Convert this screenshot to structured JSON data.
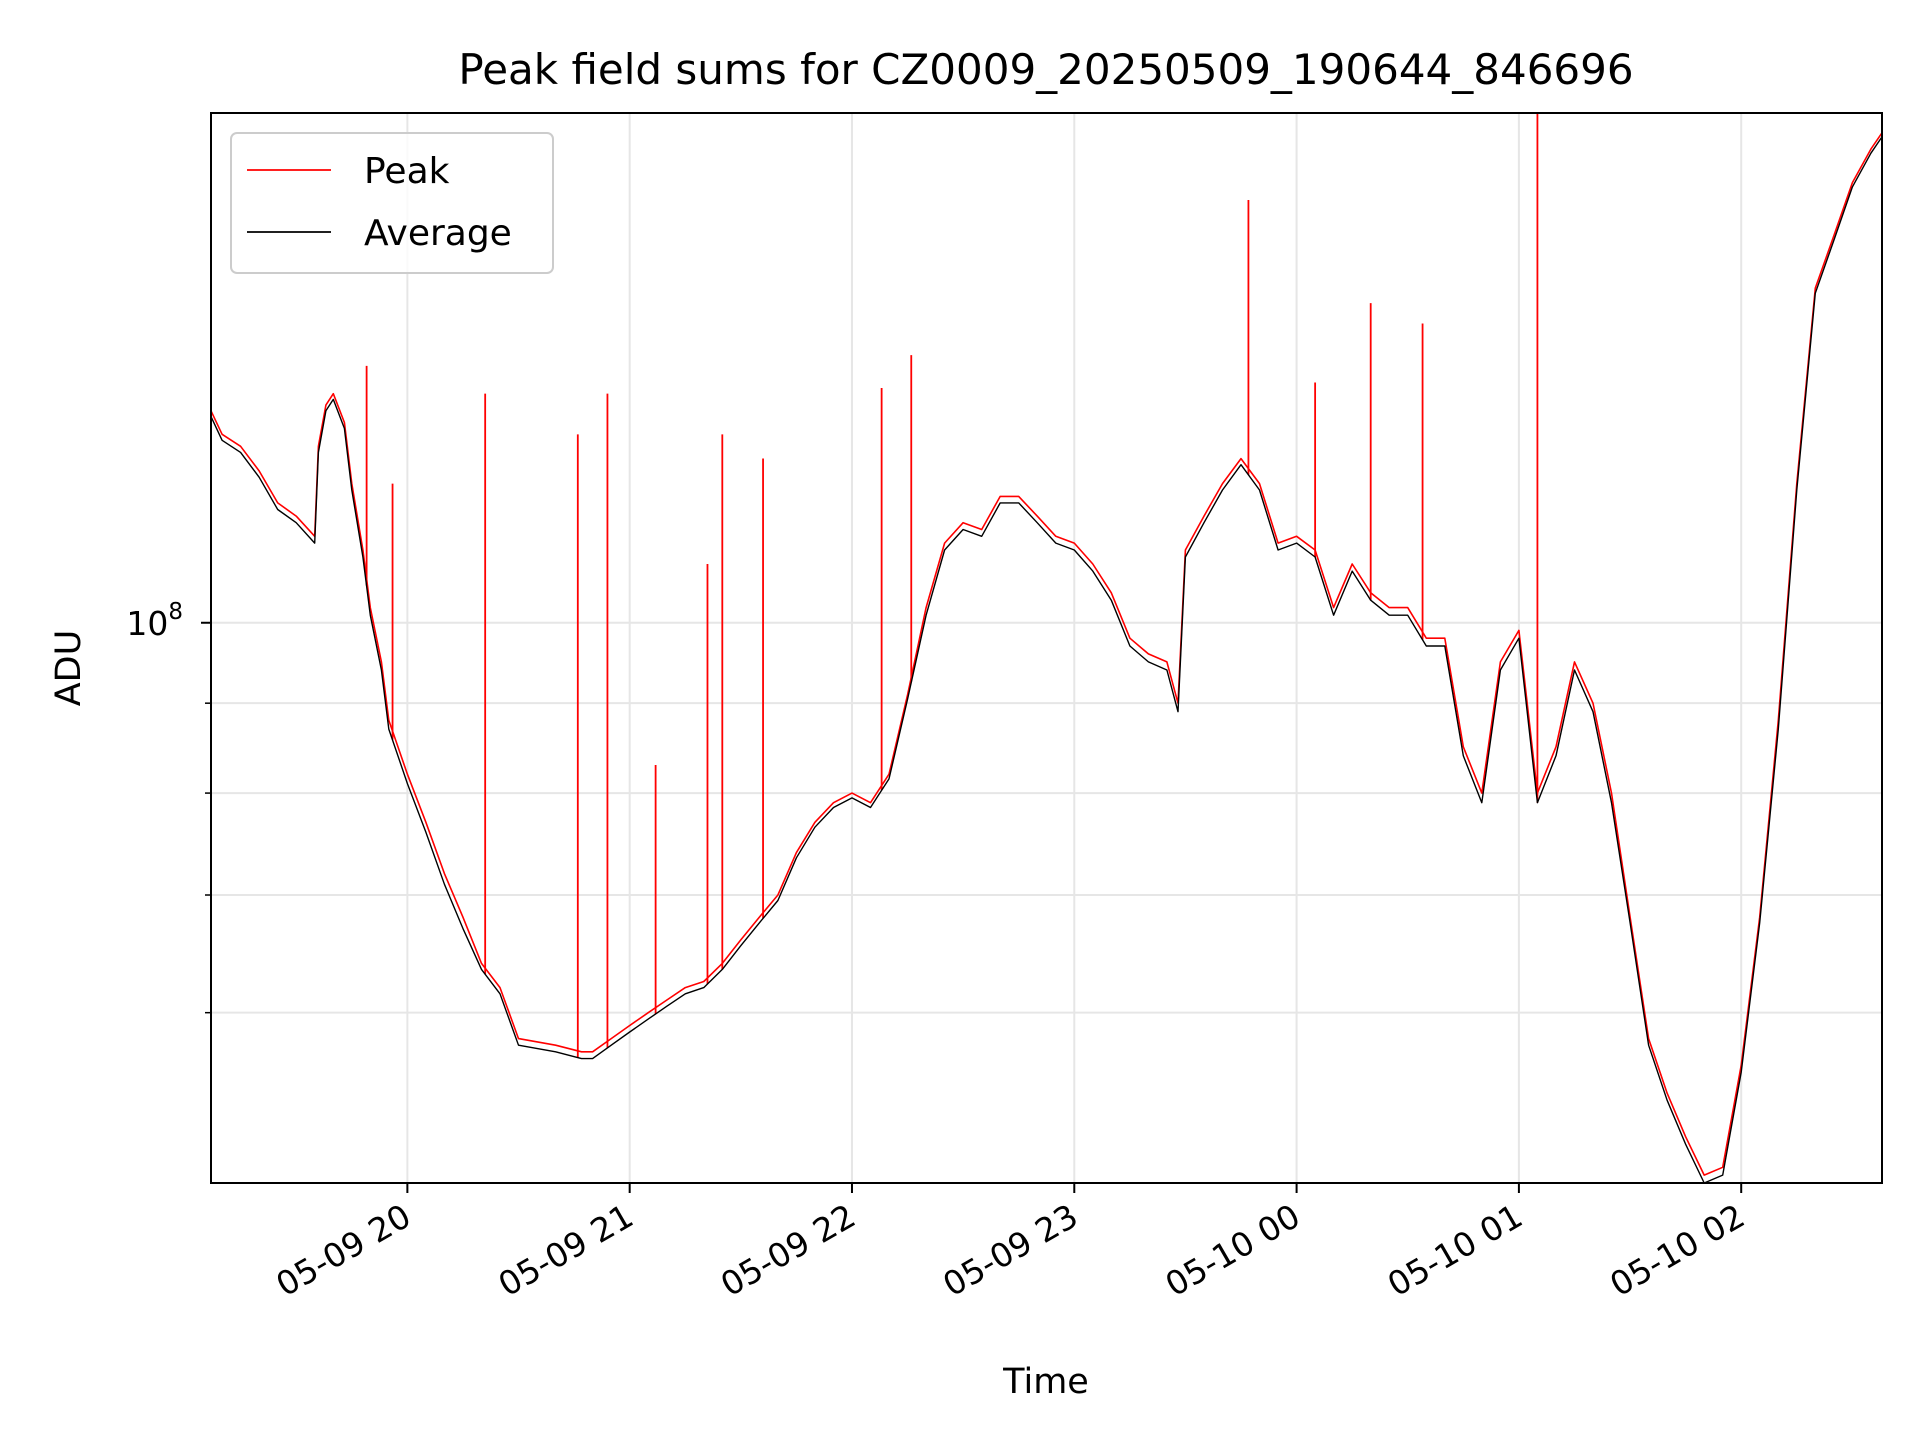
{
  "chart_data": {
    "type": "line",
    "title": "Peak field sums for CZ0009_20250509_190644_846696",
    "xlabel": "Time",
    "ylabel": "ADU",
    "yscale": "log",
    "xlim": [
      "2025-05-09 19:07",
      "2025-05-10 02:38"
    ],
    "ylim": [
      48000000,
      195000000
    ],
    "grid": true,
    "legend_position": "upper-left",
    "x_ticks": [
      {
        "value": "2025-05-09 20:00",
        "label": "05-09 20"
      },
      {
        "value": "2025-05-09 21:00",
        "label": "05-09 21"
      },
      {
        "value": "2025-05-09 22:00",
        "label": "05-09 22"
      },
      {
        "value": "2025-05-09 23:00",
        "label": "05-09 23"
      },
      {
        "value": "2025-05-10 00:00",
        "label": "05-10 00"
      },
      {
        "value": "2025-05-10 01:00",
        "label": "05-10 01"
      },
      {
        "value": "2025-05-10 02:00",
        "label": "05-10 02"
      }
    ],
    "y_ticks": [
      {
        "value": 100000000,
        "base": "10",
        "exp": "8"
      }
    ],
    "y_minor_ticks": [
      60000000,
      70000000,
      80000000,
      90000000
    ],
    "series": [
      {
        "name": "Peak",
        "color": "#ff0000",
        "x": [
          "2025-05-09 19:07",
          "2025-05-09 19:10",
          "2025-05-09 19:15",
          "2025-05-09 19:20",
          "2025-05-09 19:25",
          "2025-05-09 19:30",
          "2025-05-09 19:35",
          "2025-05-09 19:36",
          "2025-05-09 19:38",
          "2025-05-09 19:40",
          "2025-05-09 19:43",
          "2025-05-09 19:45",
          "2025-05-09 19:48",
          "2025-05-09 19:50",
          "2025-05-09 19:53",
          "2025-05-09 19:55",
          "2025-05-09 20:00",
          "2025-05-09 20:05",
          "2025-05-09 20:10",
          "2025-05-09 20:15",
          "2025-05-09 20:20",
          "2025-05-09 20:25",
          "2025-05-09 20:30",
          "2025-05-09 20:40",
          "2025-05-09 20:47",
          "2025-05-09 20:50",
          "2025-05-09 20:55",
          "2025-05-09 21:00",
          "2025-05-09 21:05",
          "2025-05-09 21:10",
          "2025-05-09 21:15",
          "2025-05-09 21:20",
          "2025-05-09 21:25",
          "2025-05-09 21:30",
          "2025-05-09 21:35",
          "2025-05-09 21:40",
          "2025-05-09 21:45",
          "2025-05-09 21:50",
          "2025-05-09 21:55",
          "2025-05-09 22:00",
          "2025-05-09 22:05",
          "2025-05-09 22:10",
          "2025-05-09 22:15",
          "2025-05-09 22:20",
          "2025-05-09 22:25",
          "2025-05-09 22:30",
          "2025-05-09 22:35",
          "2025-05-09 22:40",
          "2025-05-09 22:45",
          "2025-05-09 22:50",
          "2025-05-09 22:55",
          "2025-05-09 23:00",
          "2025-05-09 23:05",
          "2025-05-09 23:10",
          "2025-05-09 23:15",
          "2025-05-09 23:20",
          "2025-05-09 23:25",
          "2025-05-09 23:28",
          "2025-05-09 23:30",
          "2025-05-09 23:35",
          "2025-05-09 23:40",
          "2025-05-09 23:45",
          "2025-05-09 23:50",
          "2025-05-09 23:55",
          "2025-05-10 00:00",
          "2025-05-10 00:05",
          "2025-05-10 00:10",
          "2025-05-10 00:15",
          "2025-05-10 00:20",
          "2025-05-10 00:25",
          "2025-05-10 00:30",
          "2025-05-10 00:35",
          "2025-05-10 00:40",
          "2025-05-10 00:45",
          "2025-05-10 00:50",
          "2025-05-10 00:55",
          "2025-05-10 01:00",
          "2025-05-10 01:05",
          "2025-05-10 01:10",
          "2025-05-10 01:15",
          "2025-05-10 01:20",
          "2025-05-10 01:25",
          "2025-05-10 01:30",
          "2025-05-10 01:35",
          "2025-05-10 01:40",
          "2025-05-10 01:45",
          "2025-05-10 01:50",
          "2025-05-10 01:55",
          "2025-05-10 02:00",
          "2025-05-10 02:05",
          "2025-05-10 02:10",
          "2025-05-10 02:15",
          "2025-05-10 02:20",
          "2025-05-10 02:25",
          "2025-05-10 02:30",
          "2025-05-10 02:35",
          "2025-05-10 02:38"
        ],
        "values": [
          132000000,
          128000000,
          126000000,
          122000000,
          117000000,
          115000000,
          112000000,
          126000000,
          133000000,
          135000000,
          130000000,
          120000000,
          110000000,
          102000000,
          95000000,
          88000000,
          82000000,
          77000000,
          72000000,
          68000000,
          64000000,
          62000000,
          58000000,
          57500000,
          57000000,
          57000000,
          58000000,
          59000000,
          60000000,
          61000000,
          62000000,
          62500000,
          64000000,
          66000000,
          68000000,
          70000000,
          74000000,
          77000000,
          79000000,
          80000000,
          79000000,
          82000000,
          91000000,
          102000000,
          111000000,
          114000000,
          113000000,
          118000000,
          118000000,
          115000000,
          112000000,
          111000000,
          108000000,
          104000000,
          98000000,
          96000000,
          95000000,
          90000000,
          110000000,
          115000000,
          120000000,
          124000000,
          120000000,
          111000000,
          112000000,
          110000000,
          102000000,
          108000000,
          104000000,
          102000000,
          102000000,
          98000000,
          98000000,
          85000000,
          80000000,
          95000000,
          99000000,
          80000000,
          85000000,
          95000000,
          90000000,
          80000000,
          68000000,
          58000000,
          54000000,
          51000000,
          48500000,
          49000000,
          56000000,
          68000000,
          88000000,
          120000000,
          155000000,
          166000000,
          178000000,
          186000000,
          190000000
        ],
        "spikes": [
          {
            "x": "2025-05-09 19:49",
            "value": 140000000
          },
          {
            "x": "2025-05-09 19:56",
            "value": 120000000
          },
          {
            "x": "2025-05-09 20:21",
            "value": 135000000
          },
          {
            "x": "2025-05-09 20:46",
            "value": 128000000
          },
          {
            "x": "2025-05-09 20:54",
            "value": 135000000
          },
          {
            "x": "2025-05-09 21:07",
            "value": 83000000
          },
          {
            "x": "2025-05-09 21:21",
            "value": 108000000
          },
          {
            "x": "2025-05-09 21:25",
            "value": 128000000
          },
          {
            "x": "2025-05-09 21:36",
            "value": 124000000
          },
          {
            "x": "2025-05-09 22:08",
            "value": 136000000
          },
          {
            "x": "2025-05-09 22:16",
            "value": 142000000
          },
          {
            "x": "2025-05-09 23:47",
            "value": 174000000
          },
          {
            "x": "2025-05-10 00:05",
            "value": 137000000
          },
          {
            "x": "2025-05-10 00:20",
            "value": 152000000
          },
          {
            "x": "2025-05-10 00:34",
            "value": 148000000
          },
          {
            "x": "2025-05-10 01:05",
            "value": 195000000
          }
        ]
      },
      {
        "name": "Average",
        "color": "#000000",
        "x": [
          "2025-05-09 19:07",
          "2025-05-09 19:10",
          "2025-05-09 19:15",
          "2025-05-09 19:20",
          "2025-05-09 19:25",
          "2025-05-09 19:30",
          "2025-05-09 19:35",
          "2025-05-09 19:36",
          "2025-05-09 19:38",
          "2025-05-09 19:40",
          "2025-05-09 19:43",
          "2025-05-09 19:45",
          "2025-05-09 19:48",
          "2025-05-09 19:50",
          "2025-05-09 19:53",
          "2025-05-09 19:55",
          "2025-05-09 20:00",
          "2025-05-09 20:05",
          "2025-05-09 20:10",
          "2025-05-09 20:15",
          "2025-05-09 20:20",
          "2025-05-09 20:25",
          "2025-05-09 20:30",
          "2025-05-09 20:40",
          "2025-05-09 20:47",
          "2025-05-09 20:50",
          "2025-05-09 20:55",
          "2025-05-09 21:00",
          "2025-05-09 21:05",
          "2025-05-09 21:10",
          "2025-05-09 21:15",
          "2025-05-09 21:20",
          "2025-05-09 21:25",
          "2025-05-09 21:30",
          "2025-05-09 21:35",
          "2025-05-09 21:40",
          "2025-05-09 21:45",
          "2025-05-09 21:50",
          "2025-05-09 21:55",
          "2025-05-09 22:00",
          "2025-05-09 22:05",
          "2025-05-09 22:10",
          "2025-05-09 22:15",
          "2025-05-09 22:20",
          "2025-05-09 22:25",
          "2025-05-09 22:30",
          "2025-05-09 22:35",
          "2025-05-09 22:40",
          "2025-05-09 22:45",
          "2025-05-09 22:50",
          "2025-05-09 22:55",
          "2025-05-09 23:00",
          "2025-05-09 23:05",
          "2025-05-09 23:10",
          "2025-05-09 23:15",
          "2025-05-09 23:20",
          "2025-05-09 23:25",
          "2025-05-09 23:28",
          "2025-05-09 23:30",
          "2025-05-09 23:35",
          "2025-05-09 23:40",
          "2025-05-09 23:45",
          "2025-05-09 23:50",
          "2025-05-09 23:55",
          "2025-05-10 00:00",
          "2025-05-10 00:05",
          "2025-05-10 00:10",
          "2025-05-10 00:15",
          "2025-05-10 00:20",
          "2025-05-10 00:25",
          "2025-05-10 00:30",
          "2025-05-10 00:35",
          "2025-05-10 00:40",
          "2025-05-10 00:45",
          "2025-05-10 00:50",
          "2025-05-10 00:55",
          "2025-05-10 01:00",
          "2025-05-10 01:05",
          "2025-05-10 01:10",
          "2025-05-10 01:15",
          "2025-05-10 01:20",
          "2025-05-10 01:25",
          "2025-05-10 01:30",
          "2025-05-10 01:35",
          "2025-05-10 01:40",
          "2025-05-10 01:45",
          "2025-05-10 01:50",
          "2025-05-10 01:55",
          "2025-05-10 02:00",
          "2025-05-10 02:05",
          "2025-05-10 02:10",
          "2025-05-10 02:15",
          "2025-05-10 02:20",
          "2025-05-10 02:25",
          "2025-05-10 02:30",
          "2025-05-10 02:35",
          "2025-05-10 02:38"
        ],
        "values": [
          131000000,
          127000000,
          125000000,
          121000000,
          116000000,
          114000000,
          111000000,
          125000000,
          132000000,
          134000000,
          129000000,
          119000000,
          109000000,
          101000000,
          94000000,
          87000000,
          81000000,
          76000000,
          71000000,
          67000000,
          63500000,
          61500000,
          57500000,
          57000000,
          56500000,
          56500000,
          57500000,
          58500000,
          59500000,
          60500000,
          61500000,
          62000000,
          63500000,
          65500000,
          67500000,
          69500000,
          73500000,
          76500000,
          78500000,
          79500000,
          78500000,
          81500000,
          90500000,
          101000000,
          110000000,
          113000000,
          112000000,
          117000000,
          117000000,
          114000000,
          111000000,
          110000000,
          107000000,
          103000000,
          97000000,
          95000000,
          94000000,
          89000000,
          109000000,
          114000000,
          119000000,
          123000000,
          119000000,
          110000000,
          111000000,
          109000000,
          101000000,
          107000000,
          103000000,
          101000000,
          101000000,
          97000000,
          97000000,
          84000000,
          79000000,
          94000000,
          98000000,
          79000000,
          84000000,
          94000000,
          89000000,
          79000000,
          67500000,
          57500000,
          53500000,
          50500000,
          48000000,
          48500000,
          55500000,
          67500000,
          87000000,
          119000000,
          154000000,
          165000000,
          177000000,
          185000000,
          189000000
        ]
      }
    ]
  }
}
